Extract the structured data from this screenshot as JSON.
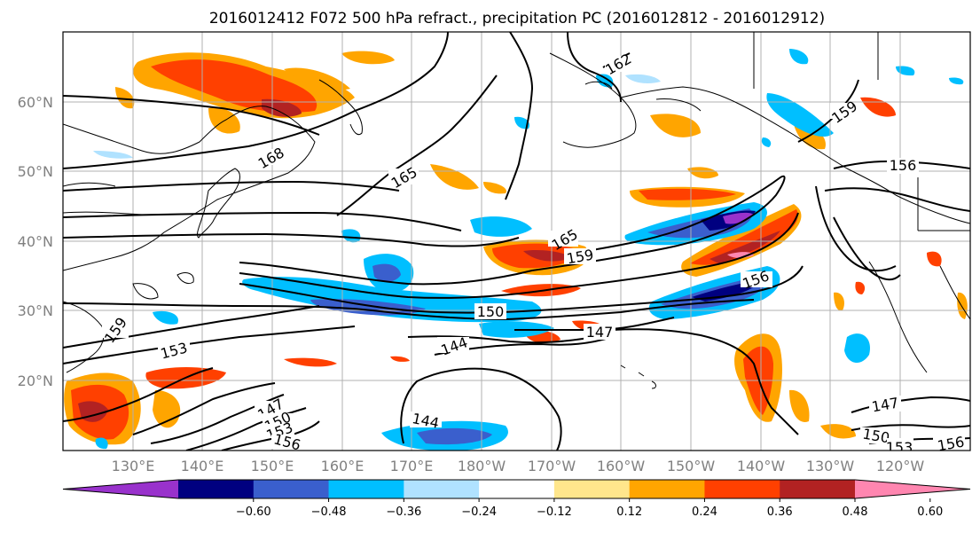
{
  "title": "2016012412 F072 500 hPa refract., precipitation PC (2016012812 - 2016012912)",
  "map": {
    "lon_labels": [
      "130°E",
      "140°E",
      "150°E",
      "160°E",
      "170°E",
      "180°W",
      "170°W",
      "160°W",
      "150°W",
      "140°W",
      "130°W",
      "120°W"
    ],
    "lat_labels": [
      "60°N",
      "50°N",
      "40°N",
      "30°N",
      "20°N"
    ],
    "contour_levels": [
      144,
      147,
      150,
      153,
      156,
      159,
      162,
      165,
      168
    ],
    "contour_labels": [
      {
        "text": "162"
      },
      {
        "text": "168"
      },
      {
        "text": "165"
      },
      {
        "text": "159"
      },
      {
        "text": "156"
      },
      {
        "text": "165"
      },
      {
        "text": "159"
      },
      {
        "text": "156"
      },
      {
        "text": "150"
      },
      {
        "text": "147"
      },
      {
        "text": "144"
      },
      {
        "text": "153"
      },
      {
        "text": "159"
      },
      {
        "text": "147"
      },
      {
        "text": "150"
      },
      {
        "text": "153"
      },
      {
        "text": "156"
      },
      {
        "text": "144"
      },
      {
        "text": "147"
      },
      {
        "text": "150"
      },
      {
        "text": "153"
      },
      {
        "text": "156"
      }
    ]
  },
  "colorbar": {
    "colors": [
      "#9932cc",
      "#000080",
      "#3a5fcd",
      "#00bfff",
      "#b0e2ff",
      "#ffffff",
      "#ffe68c",
      "#ffa500",
      "#ff4000",
      "#b22222",
      "#ff86b0"
    ],
    "tick_labels": [
      "−0.60",
      "−0.48",
      "−0.36",
      "−0.24",
      "−0.12",
      "0.12",
      "0.24",
      "0.36",
      "0.48",
      "0.60"
    ]
  }
}
